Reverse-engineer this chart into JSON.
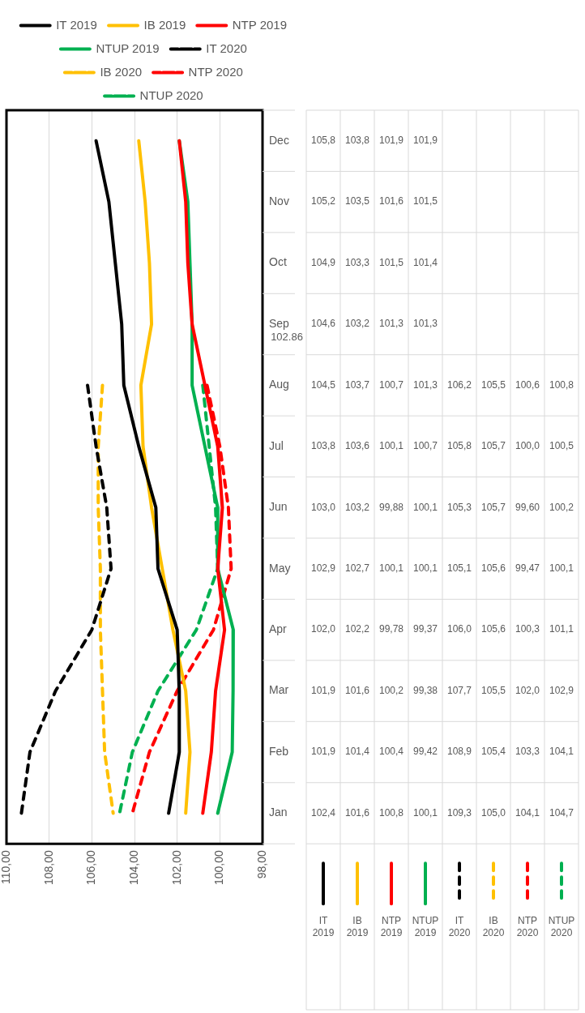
{
  "chart_data": {
    "type": "line",
    "orientation": "horizontal",
    "categories": [
      "Dec",
      "Nov",
      "Oct",
      "Sep",
      "Aug",
      "Jul",
      "Jun",
      "May",
      "Apr",
      "Mar",
      "Feb",
      "Jan"
    ],
    "xlim": [
      110,
      98
    ],
    "xticks": [
      {
        "value": 110,
        "label": "110,00"
      },
      {
        "value": 108,
        "label": "108,00"
      },
      {
        "value": 106,
        "label": "106,00"
      },
      {
        "value": 104,
        "label": "104,00"
      },
      {
        "value": 102,
        "label": "102,00"
      },
      {
        "value": 100,
        "label": "100,00"
      },
      {
        "value": 98,
        "label": "98,00"
      }
    ],
    "grid": "x",
    "legend": "top",
    "marker": "none",
    "line_style": "solid",
    "annotations": [
      "102.86"
    ],
    "series": [
      {
        "name": "IT 2019",
        "color": "#000000",
        "values": [
          105.8,
          105.2,
          104.9,
          104.6,
          104.5,
          103.8,
          103.0,
          102.9,
          102.0,
          101.9,
          101.9,
          102.4
        ],
        "value_labels": [
          "105,8",
          "105,2",
          "104,9",
          "104,6",
          "104,5",
          "103,8",
          "103,0",
          "102,9",
          "102,0",
          "101,9",
          "101,9",
          "102,4"
        ]
      },
      {
        "name": "IB 2019",
        "color": "#ffc000",
        "values": [
          103.8,
          103.5,
          103.3,
          103.2,
          103.7,
          103.6,
          103.2,
          102.7,
          102.2,
          101.6,
          101.4,
          101.6
        ],
        "value_labels": [
          "103,8",
          "103,5",
          "103,3",
          "103,2",
          "103,7",
          "103,6",
          "103,2",
          "102,7",
          "102,2",
          "101,6",
          "101,4",
          "101,6"
        ]
      },
      {
        "name": "NTP 2019",
        "color": "#ff0000",
        "values": [
          101.9,
          101.6,
          101.5,
          101.3,
          100.7,
          100.1,
          99.88,
          100.1,
          99.78,
          100.2,
          100.4,
          100.8
        ],
        "value_labels": [
          "101,9",
          "101,6",
          "101,5",
          "101,3",
          "100,7",
          "100,1",
          "99,88",
          "100,1",
          "99,78",
          "100,2",
          "100,4",
          "100,8"
        ]
      },
      {
        "name": "NTUP 2019",
        "color": "#00b050",
        "values": [
          101.9,
          101.5,
          101.4,
          101.3,
          101.3,
          100.7,
          100.1,
          100.1,
          99.37,
          99.38,
          99.42,
          100.1
        ],
        "value_labels": [
          "101,9",
          "101,5",
          "101,4",
          "101,3",
          "101,3",
          "100,7",
          "100,1",
          "100,1",
          "99,37",
          "99,38",
          "99,42",
          "100,1"
        ]
      },
      {
        "name": "IT 2020",
        "color": "#000000",
        "line_style": "dashed",
        "values": [
          null,
          null,
          null,
          null,
          106.2,
          105.8,
          105.3,
          105.1,
          106.0,
          107.7,
          108.9,
          109.3
        ],
        "value_labels": [
          null,
          null,
          null,
          null,
          "106,2",
          "105,8",
          "105,3",
          "105,1",
          "106,0",
          "107,7",
          "108,9",
          "109,3"
        ]
      },
      {
        "name": "IB 2020",
        "color": "#ffc000",
        "line_style": "dashed",
        "values": [
          null,
          null,
          null,
          null,
          105.5,
          105.7,
          105.7,
          105.6,
          105.6,
          105.5,
          105.4,
          105.0
        ],
        "value_labels": [
          null,
          null,
          null,
          null,
          "105,5",
          "105,7",
          "105,7",
          "105,6",
          "105,6",
          "105,5",
          "105,4",
          "105,0"
        ]
      },
      {
        "name": "NTP 2020",
        "color": "#ff0000",
        "line_style": "dashed",
        "values": [
          null,
          null,
          null,
          null,
          100.6,
          100.0,
          99.6,
          99.47,
          100.3,
          102.0,
          103.3,
          104.1
        ],
        "value_labels": [
          null,
          null,
          null,
          null,
          "100,6",
          "100,0",
          "99,60",
          "99,47",
          "100,3",
          "102,0",
          "103,3",
          "104,1"
        ]
      },
      {
        "name": "NTUP 2020",
        "color": "#00b050",
        "line_style": "dashed",
        "values": [
          null,
          null,
          null,
          null,
          100.8,
          100.5,
          100.2,
          100.1,
          101.1,
          102.9,
          104.1,
          104.7
        ],
        "value_labels": [
          null,
          null,
          null,
          null,
          "100,8",
          "100,5",
          "100,2",
          "100,1",
          "101,1",
          "102,9",
          "104,1",
          "104,7"
        ]
      }
    ]
  }
}
